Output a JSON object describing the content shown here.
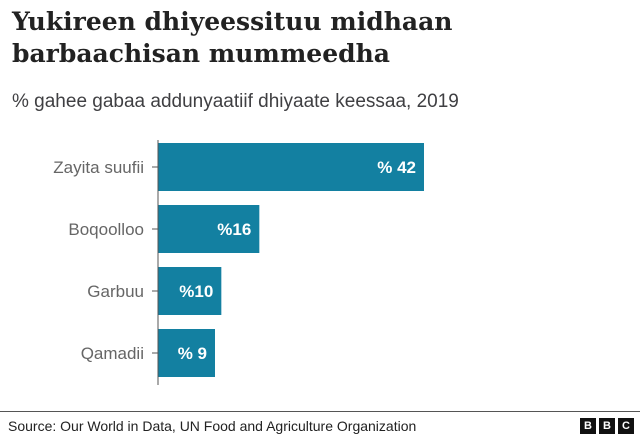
{
  "title_lines": [
    "Yukireen dhiyeessituu midhaan",
    "barbaachisan mummeedha"
  ],
  "subtitle": "% gahee gabaa addunyaatiif dhiyaate keessaa, 2019",
  "chart_data": {
    "type": "bar",
    "orientation": "horizontal",
    "categories": [
      "Zayita suufii",
      "Boqoolloo",
      "Garbuu",
      "Qamadii"
    ],
    "values": [
      42,
      16,
      10,
      9
    ],
    "data_labels": [
      "% 42",
      "%16",
      "%10",
      "% 9"
    ],
    "bar_color": "#1380A1",
    "grid": false,
    "xlim": [
      0,
      42
    ]
  },
  "source": "Source: Our World in Data, UN Food and Agriculture Organization",
  "logo": [
    "B",
    "B",
    "C"
  ]
}
